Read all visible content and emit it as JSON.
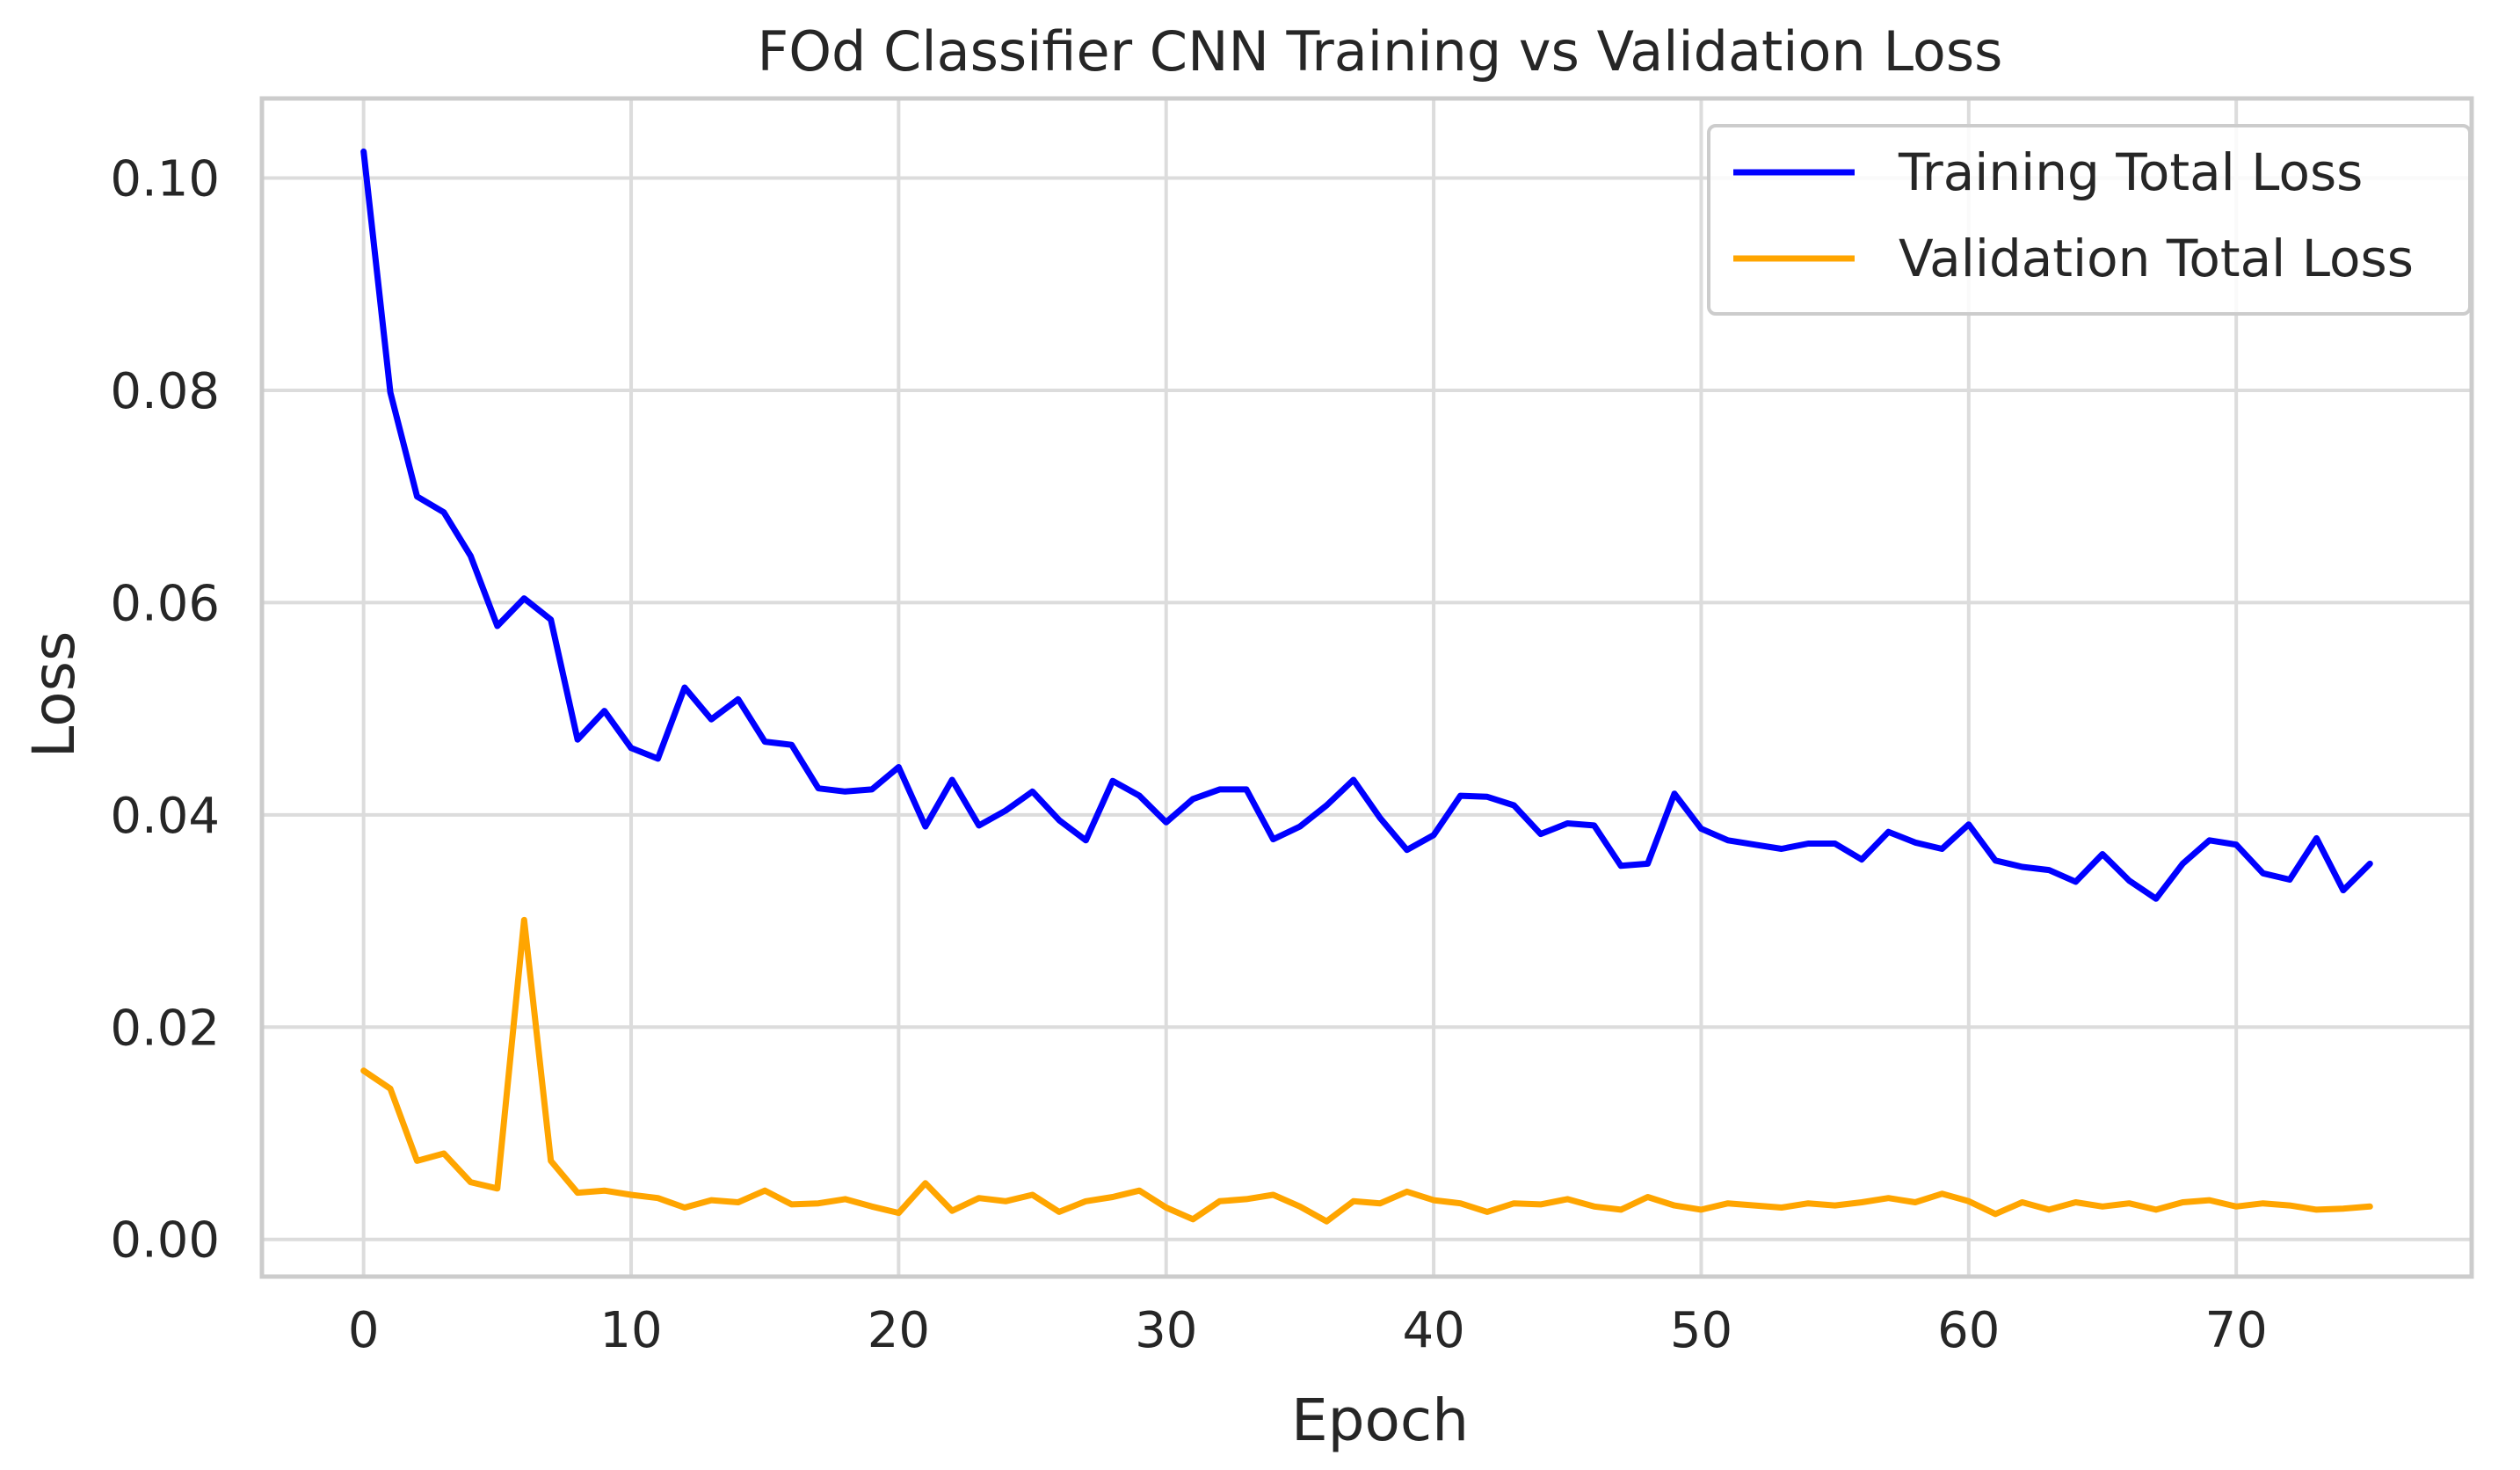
{
  "chart_data": {
    "type": "line",
    "title": "FOd Classifier CNN Training vs Validation Loss",
    "xlabel": "Epoch",
    "ylabel": "Loss",
    "xlim": [
      -3.8,
      78.8
    ],
    "ylim": [
      -0.0035,
      0.1075
    ],
    "xticks": [
      0,
      10,
      20,
      30,
      40,
      50,
      60,
      70
    ],
    "xtick_labels": [
      "0",
      "10",
      "20",
      "30",
      "40",
      "50",
      "60",
      "70"
    ],
    "yticks": [
      0.0,
      0.02,
      0.04,
      0.06,
      0.08,
      0.1
    ],
    "ytick_labels": [
      "0.00",
      "0.02",
      "0.04",
      "0.06",
      "0.08",
      "0.10"
    ],
    "grid": true,
    "legend_position": "top-right",
    "series": [
      {
        "name": "Training Total Loss",
        "color": "#0000ff",
        "values": [
          0.1025,
          0.0798,
          0.07,
          0.0685,
          0.0644,
          0.0578,
          0.0604,
          0.0584,
          0.0471,
          0.0498,
          0.0463,
          0.0453,
          0.052,
          0.049,
          0.0509,
          0.0469,
          0.0466,
          0.0425,
          0.0422,
          0.0424,
          0.0445,
          0.0389,
          0.0433,
          0.039,
          0.0404,
          0.0422,
          0.0395,
          0.0376,
          0.0432,
          0.0418,
          0.0393,
          0.0415,
          0.0424,
          0.0424,
          0.0377,
          0.0389,
          0.0409,
          0.0433,
          0.0397,
          0.0367,
          0.0381,
          0.0418,
          0.0417,
          0.0409,
          0.0382,
          0.0392,
          0.039,
          0.0352,
          0.0354,
          0.042,
          0.0387,
          0.0376,
          0.0372,
          0.0368,
          0.0373,
          0.0373,
          0.0358,
          0.0384,
          0.0374,
          0.0368,
          0.0391,
          0.0357,
          0.0351,
          0.0348,
          0.0337,
          0.0363,
          0.0338,
          0.0321,
          0.0354,
          0.0376,
          0.0372,
          0.0345,
          0.0339,
          0.0378,
          0.0329,
          0.0354
        ]
      },
      {
        "name": "Validation Total Loss",
        "color": "#ffa500",
        "values": [
          0.0159,
          0.0142,
          0.0074,
          0.0081,
          0.0054,
          0.0048,
          0.0301,
          0.0074,
          0.0044,
          0.0046,
          0.0042,
          0.0039,
          0.003,
          0.0037,
          0.0035,
          0.0046,
          0.0033,
          0.0034,
          0.0038,
          0.0031,
          0.0025,
          0.0053,
          0.0027,
          0.0039,
          0.0036,
          0.0042,
          0.0026,
          0.0036,
          0.004,
          0.0046,
          0.003,
          0.0019,
          0.0036,
          0.0038,
          0.0042,
          0.0031,
          0.0017,
          0.0036,
          0.0034,
          0.0045,
          0.0037,
          0.0034,
          0.0026,
          0.0034,
          0.0033,
          0.0038,
          0.0031,
          0.0028,
          0.004,
          0.0032,
          0.0028,
          0.0034,
          0.0032,
          0.003,
          0.0034,
          0.0032,
          0.0035,
          0.0039,
          0.0035,
          0.0043,
          0.0036,
          0.0024,
          0.0035,
          0.0028,
          0.0035,
          0.0031,
          0.0034,
          0.0028,
          0.0035,
          0.0037,
          0.0031,
          0.0034,
          0.0032,
          0.0028,
          0.0029,
          0.0031
        ]
      }
    ]
  }
}
